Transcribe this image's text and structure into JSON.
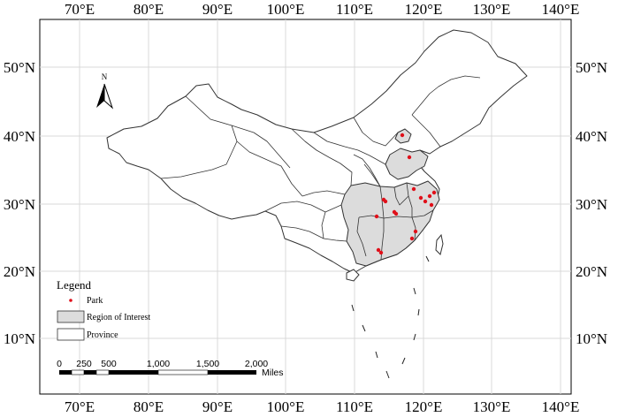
{
  "map": {
    "top_lon_labels": [
      "70°E",
      "80°E",
      "90°E",
      "100°E",
      "110°E",
      "120°E",
      "130°E",
      "140°E"
    ],
    "bottom_lon_labels": [
      "70°E",
      "80°E",
      "90°E",
      "100°E",
      "110°E",
      "120°E",
      "130°E",
      "140°E"
    ],
    "left_lat_labels": [
      "50°N",
      "40°N",
      "30°N",
      "20°N",
      "10°N"
    ],
    "right_lat_labels": [
      "50°N",
      "40°N",
      "30°N",
      "20°N",
      "10°N"
    ],
    "north_arrow_label": "N",
    "colors": {
      "frame": "#000000",
      "graticule": "#d9d9d9",
      "province_fill": "#ffffff",
      "region_fill": "#dcdcdc",
      "boundary": "#333333",
      "park": "#e0101a"
    }
  },
  "legend": {
    "title": "Legend",
    "items": [
      {
        "label": "Park",
        "symbol": "red-dot"
      },
      {
        "label": "Region of Interest",
        "symbol": "gray-box"
      },
      {
        "label": "Province",
        "symbol": "white-box"
      }
    ]
  },
  "scale_bar": {
    "ticks": [
      "0",
      "250",
      "500",
      "1,000",
      "1,500",
      "2,000"
    ],
    "unit": "Miles"
  }
}
